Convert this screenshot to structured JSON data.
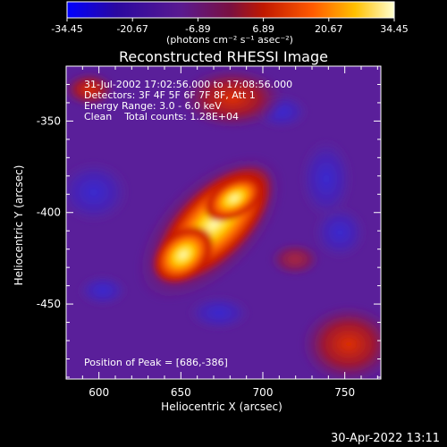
{
  "colorbar": {
    "ticks": [
      "-34.45",
      "-20.67",
      "-6.89",
      "6.89",
      "20.67",
      "34.45"
    ],
    "tick_values": [
      -34.45,
      -20.67,
      -6.89,
      6.89,
      20.67,
      34.45
    ],
    "range": [
      -34.45,
      34.45
    ],
    "unit_label": "(photons cm⁻² s⁻¹ asec⁻²)",
    "colors": [
      "#0000ff",
      "#2a0a8a",
      "#5a1a8a",
      "#8a1a2a",
      "#cc2200",
      "#ff6600",
      "#ffcc00",
      "#ffffcc"
    ]
  },
  "title": "Reconstructed RHESSI Image",
  "info": {
    "line1": "31-Jul-2002 17:02:56.000 to 17:08:56.000",
    "line2": "Detectors: 3F 4F 5F 6F 7F 8F, Att 1",
    "line3": "Energy Range: 3.0 - 6.0 keV",
    "line4": "Clean    Total counts: 1.28E+04"
  },
  "peak_label": "Position of Peak = [686,-386]",
  "axes": {
    "xlabel": "Heliocentric X (arcsec)",
    "ylabel": "Heliocentric Y (arcsec)",
    "xticks": [
      "600",
      "650",
      "700",
      "750"
    ],
    "xtick_values": [
      600,
      650,
      700,
      750
    ],
    "xlim": [
      580,
      772
    ],
    "yticks": [
      "-350",
      "-400",
      "-450"
    ],
    "ytick_values": [
      -350,
      -400,
      -450
    ],
    "ylim": [
      -491,
      -320
    ]
  },
  "footer_timestamp": "30-Apr-2022 13:11"
}
